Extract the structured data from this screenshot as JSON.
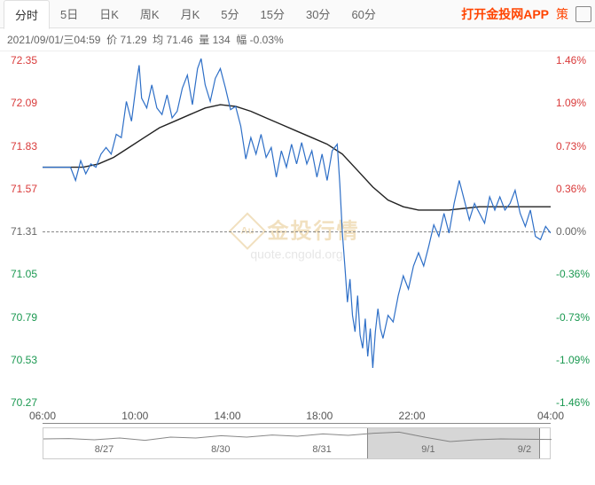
{
  "tabs": [
    "分时",
    "5日",
    "日K",
    "周K",
    "月K",
    "5分",
    "15分",
    "30分",
    "60分"
  ],
  "active_tab_index": 0,
  "app_link": "打开金投网APP",
  "extra_text": "策",
  "info": {
    "datetime": "2021/09/01/三04:59",
    "price_label": "价",
    "price_value": "71.29",
    "avg_label": "均",
    "avg_value": "71.46",
    "vol_label": "量",
    "vol_value": "134",
    "amp_label": "幅",
    "amp_value": "-0.03%"
  },
  "watermark": {
    "title": "金投行情",
    "sub": "quote.cngold.org"
  },
  "chart": {
    "type": "line",
    "y_left": {
      "values": [
        72.35,
        72.09,
        71.83,
        71.57,
        71.31,
        71.05,
        70.79,
        70.53,
        70.27
      ],
      "colors": [
        "#d93a3a",
        "#d93a3a",
        "#d93a3a",
        "#d93a3a",
        "#666666",
        "#1a9850",
        "#1a9850",
        "#1a9850",
        "#1a9850"
      ]
    },
    "y_right": {
      "values": [
        "1.46%",
        "1.09%",
        "0.73%",
        "0.36%",
        "0.00%",
        "-0.36%",
        "-0.73%",
        "-1.09%",
        "-1.46%"
      ],
      "colors": [
        "#d93a3a",
        "#d93a3a",
        "#d93a3a",
        "#d93a3a",
        "#666666",
        "#1a9850",
        "#1a9850",
        "#1a9850",
        "#1a9850"
      ]
    },
    "ymin": 70.27,
    "ymax": 72.35,
    "yzero": 71.31,
    "x_ticks": {
      "labels": [
        "06:00",
        "10:00",
        "14:00",
        "18:00",
        "22:00",
        "04:00"
      ],
      "positions": [
        0,
        0.182,
        0.364,
        0.545,
        0.727,
        1.0
      ]
    },
    "price_color": "#2e6fc7",
    "avg_color": "#222222",
    "background_color": "#ffffff",
    "grid_color": "#cccccc",
    "line_width": 1.2,
    "price_series": [
      [
        0.0,
        71.7
      ],
      [
        0.02,
        71.7
      ],
      [
        0.04,
        71.7
      ],
      [
        0.055,
        71.7
      ],
      [
        0.065,
        71.62
      ],
      [
        0.075,
        71.74
      ],
      [
        0.085,
        71.66
      ],
      [
        0.095,
        71.72
      ],
      [
        0.105,
        71.7
      ],
      [
        0.115,
        71.78
      ],
      [
        0.125,
        71.82
      ],
      [
        0.135,
        71.78
      ],
      [
        0.145,
        71.9
      ],
      [
        0.155,
        71.88
      ],
      [
        0.165,
        72.1
      ],
      [
        0.175,
        71.98
      ],
      [
        0.185,
        72.22
      ],
      [
        0.19,
        72.32
      ],
      [
        0.195,
        72.12
      ],
      [
        0.205,
        72.06
      ],
      [
        0.215,
        72.2
      ],
      [
        0.225,
        72.06
      ],
      [
        0.235,
        72.02
      ],
      [
        0.245,
        72.14
      ],
      [
        0.255,
        72.0
      ],
      [
        0.265,
        72.04
      ],
      [
        0.275,
        72.18
      ],
      [
        0.285,
        72.26
      ],
      [
        0.295,
        72.08
      ],
      [
        0.305,
        72.3
      ],
      [
        0.312,
        72.36
      ],
      [
        0.32,
        72.2
      ],
      [
        0.33,
        72.1
      ],
      [
        0.34,
        72.24
      ],
      [
        0.35,
        72.3
      ],
      [
        0.36,
        72.18
      ],
      [
        0.37,
        72.05
      ],
      [
        0.38,
        72.07
      ],
      [
        0.39,
        71.95
      ],
      [
        0.4,
        71.75
      ],
      [
        0.41,
        71.88
      ],
      [
        0.42,
        71.78
      ],
      [
        0.43,
        71.9
      ],
      [
        0.44,
        71.76
      ],
      [
        0.45,
        71.82
      ],
      [
        0.46,
        71.64
      ],
      [
        0.47,
        71.8
      ],
      [
        0.48,
        71.7
      ],
      [
        0.49,
        71.84
      ],
      [
        0.5,
        71.72
      ],
      [
        0.51,
        71.85
      ],
      [
        0.52,
        71.72
      ],
      [
        0.53,
        71.8
      ],
      [
        0.54,
        71.64
      ],
      [
        0.55,
        71.78
      ],
      [
        0.56,
        71.62
      ],
      [
        0.57,
        71.8
      ],
      [
        0.58,
        71.84
      ],
      [
        0.585,
        71.6
      ],
      [
        0.59,
        71.3
      ],
      [
        0.595,
        71.1
      ],
      [
        0.6,
        70.88
      ],
      [
        0.605,
        71.02
      ],
      [
        0.61,
        70.8
      ],
      [
        0.615,
        70.7
      ],
      [
        0.62,
        70.92
      ],
      [
        0.625,
        70.68
      ],
      [
        0.63,
        70.6
      ],
      [
        0.635,
        70.78
      ],
      [
        0.64,
        70.55
      ],
      [
        0.645,
        70.72
      ],
      [
        0.65,
        70.48
      ],
      [
        0.655,
        70.7
      ],
      [
        0.66,
        70.84
      ],
      [
        0.665,
        70.72
      ],
      [
        0.67,
        70.66
      ],
      [
        0.68,
        70.8
      ],
      [
        0.69,
        70.76
      ],
      [
        0.7,
        70.92
      ],
      [
        0.71,
        71.04
      ],
      [
        0.72,
        70.96
      ],
      [
        0.73,
        71.1
      ],
      [
        0.74,
        71.18
      ],
      [
        0.75,
        71.1
      ],
      [
        0.76,
        71.22
      ],
      [
        0.77,
        71.35
      ],
      [
        0.78,
        71.28
      ],
      [
        0.79,
        71.42
      ],
      [
        0.8,
        71.3
      ],
      [
        0.81,
        71.48
      ],
      [
        0.82,
        71.62
      ],
      [
        0.83,
        71.5
      ],
      [
        0.84,
        71.38
      ],
      [
        0.85,
        71.48
      ],
      [
        0.86,
        71.42
      ],
      [
        0.87,
        71.36
      ],
      [
        0.88,
        71.52
      ],
      [
        0.89,
        71.44
      ],
      [
        0.9,
        71.52
      ],
      [
        0.91,
        71.44
      ],
      [
        0.92,
        71.48
      ],
      [
        0.93,
        71.56
      ],
      [
        0.94,
        71.42
      ],
      [
        0.95,
        71.34
      ],
      [
        0.96,
        71.44
      ],
      [
        0.97,
        71.28
      ],
      [
        0.98,
        71.26
      ],
      [
        0.99,
        71.34
      ],
      [
        1.0,
        71.3
      ]
    ],
    "avg_series": [
      [
        0.0,
        71.7
      ],
      [
        0.05,
        71.7
      ],
      [
        0.08,
        71.7
      ],
      [
        0.11,
        71.72
      ],
      [
        0.14,
        71.76
      ],
      [
        0.17,
        71.82
      ],
      [
        0.2,
        71.88
      ],
      [
        0.23,
        71.94
      ],
      [
        0.26,
        71.98
      ],
      [
        0.29,
        72.02
      ],
      [
        0.32,
        72.06
      ],
      [
        0.35,
        72.08
      ],
      [
        0.38,
        72.07
      ],
      [
        0.41,
        72.04
      ],
      [
        0.44,
        72.0
      ],
      [
        0.47,
        71.96
      ],
      [
        0.5,
        71.92
      ],
      [
        0.53,
        71.88
      ],
      [
        0.56,
        71.84
      ],
      [
        0.59,
        71.78
      ],
      [
        0.62,
        71.68
      ],
      [
        0.65,
        71.58
      ],
      [
        0.68,
        71.5
      ],
      [
        0.71,
        71.46
      ],
      [
        0.74,
        71.44
      ],
      [
        0.77,
        71.44
      ],
      [
        0.8,
        71.44
      ],
      [
        0.83,
        71.45
      ],
      [
        0.86,
        71.46
      ],
      [
        0.89,
        71.46
      ],
      [
        0.92,
        71.46
      ],
      [
        0.95,
        71.46
      ],
      [
        0.98,
        71.46
      ],
      [
        1.0,
        71.46
      ]
    ]
  },
  "overview": {
    "dates": [
      "8/27",
      "8/30",
      "8/31",
      "9/1",
      "9/2"
    ],
    "positions": [
      0.12,
      0.35,
      0.55,
      0.76,
      0.95
    ],
    "handle_start": 0.64,
    "handle_end": 0.98,
    "series": [
      [
        0.0,
        0.5
      ],
      [
        0.05,
        0.52
      ],
      [
        0.1,
        0.45
      ],
      [
        0.15,
        0.55
      ],
      [
        0.2,
        0.42
      ],
      [
        0.25,
        0.6
      ],
      [
        0.3,
        0.55
      ],
      [
        0.35,
        0.68
      ],
      [
        0.4,
        0.6
      ],
      [
        0.45,
        0.72
      ],
      [
        0.5,
        0.65
      ],
      [
        0.55,
        0.78
      ],
      [
        0.6,
        0.7
      ],
      [
        0.65,
        0.82
      ],
      [
        0.7,
        0.88
      ],
      [
        0.75,
        0.6
      ],
      [
        0.8,
        0.35
      ],
      [
        0.85,
        0.45
      ],
      [
        0.9,
        0.5
      ],
      [
        0.95,
        0.48
      ],
      [
        1.0,
        0.47
      ]
    ],
    "line_color": "#888888"
  }
}
